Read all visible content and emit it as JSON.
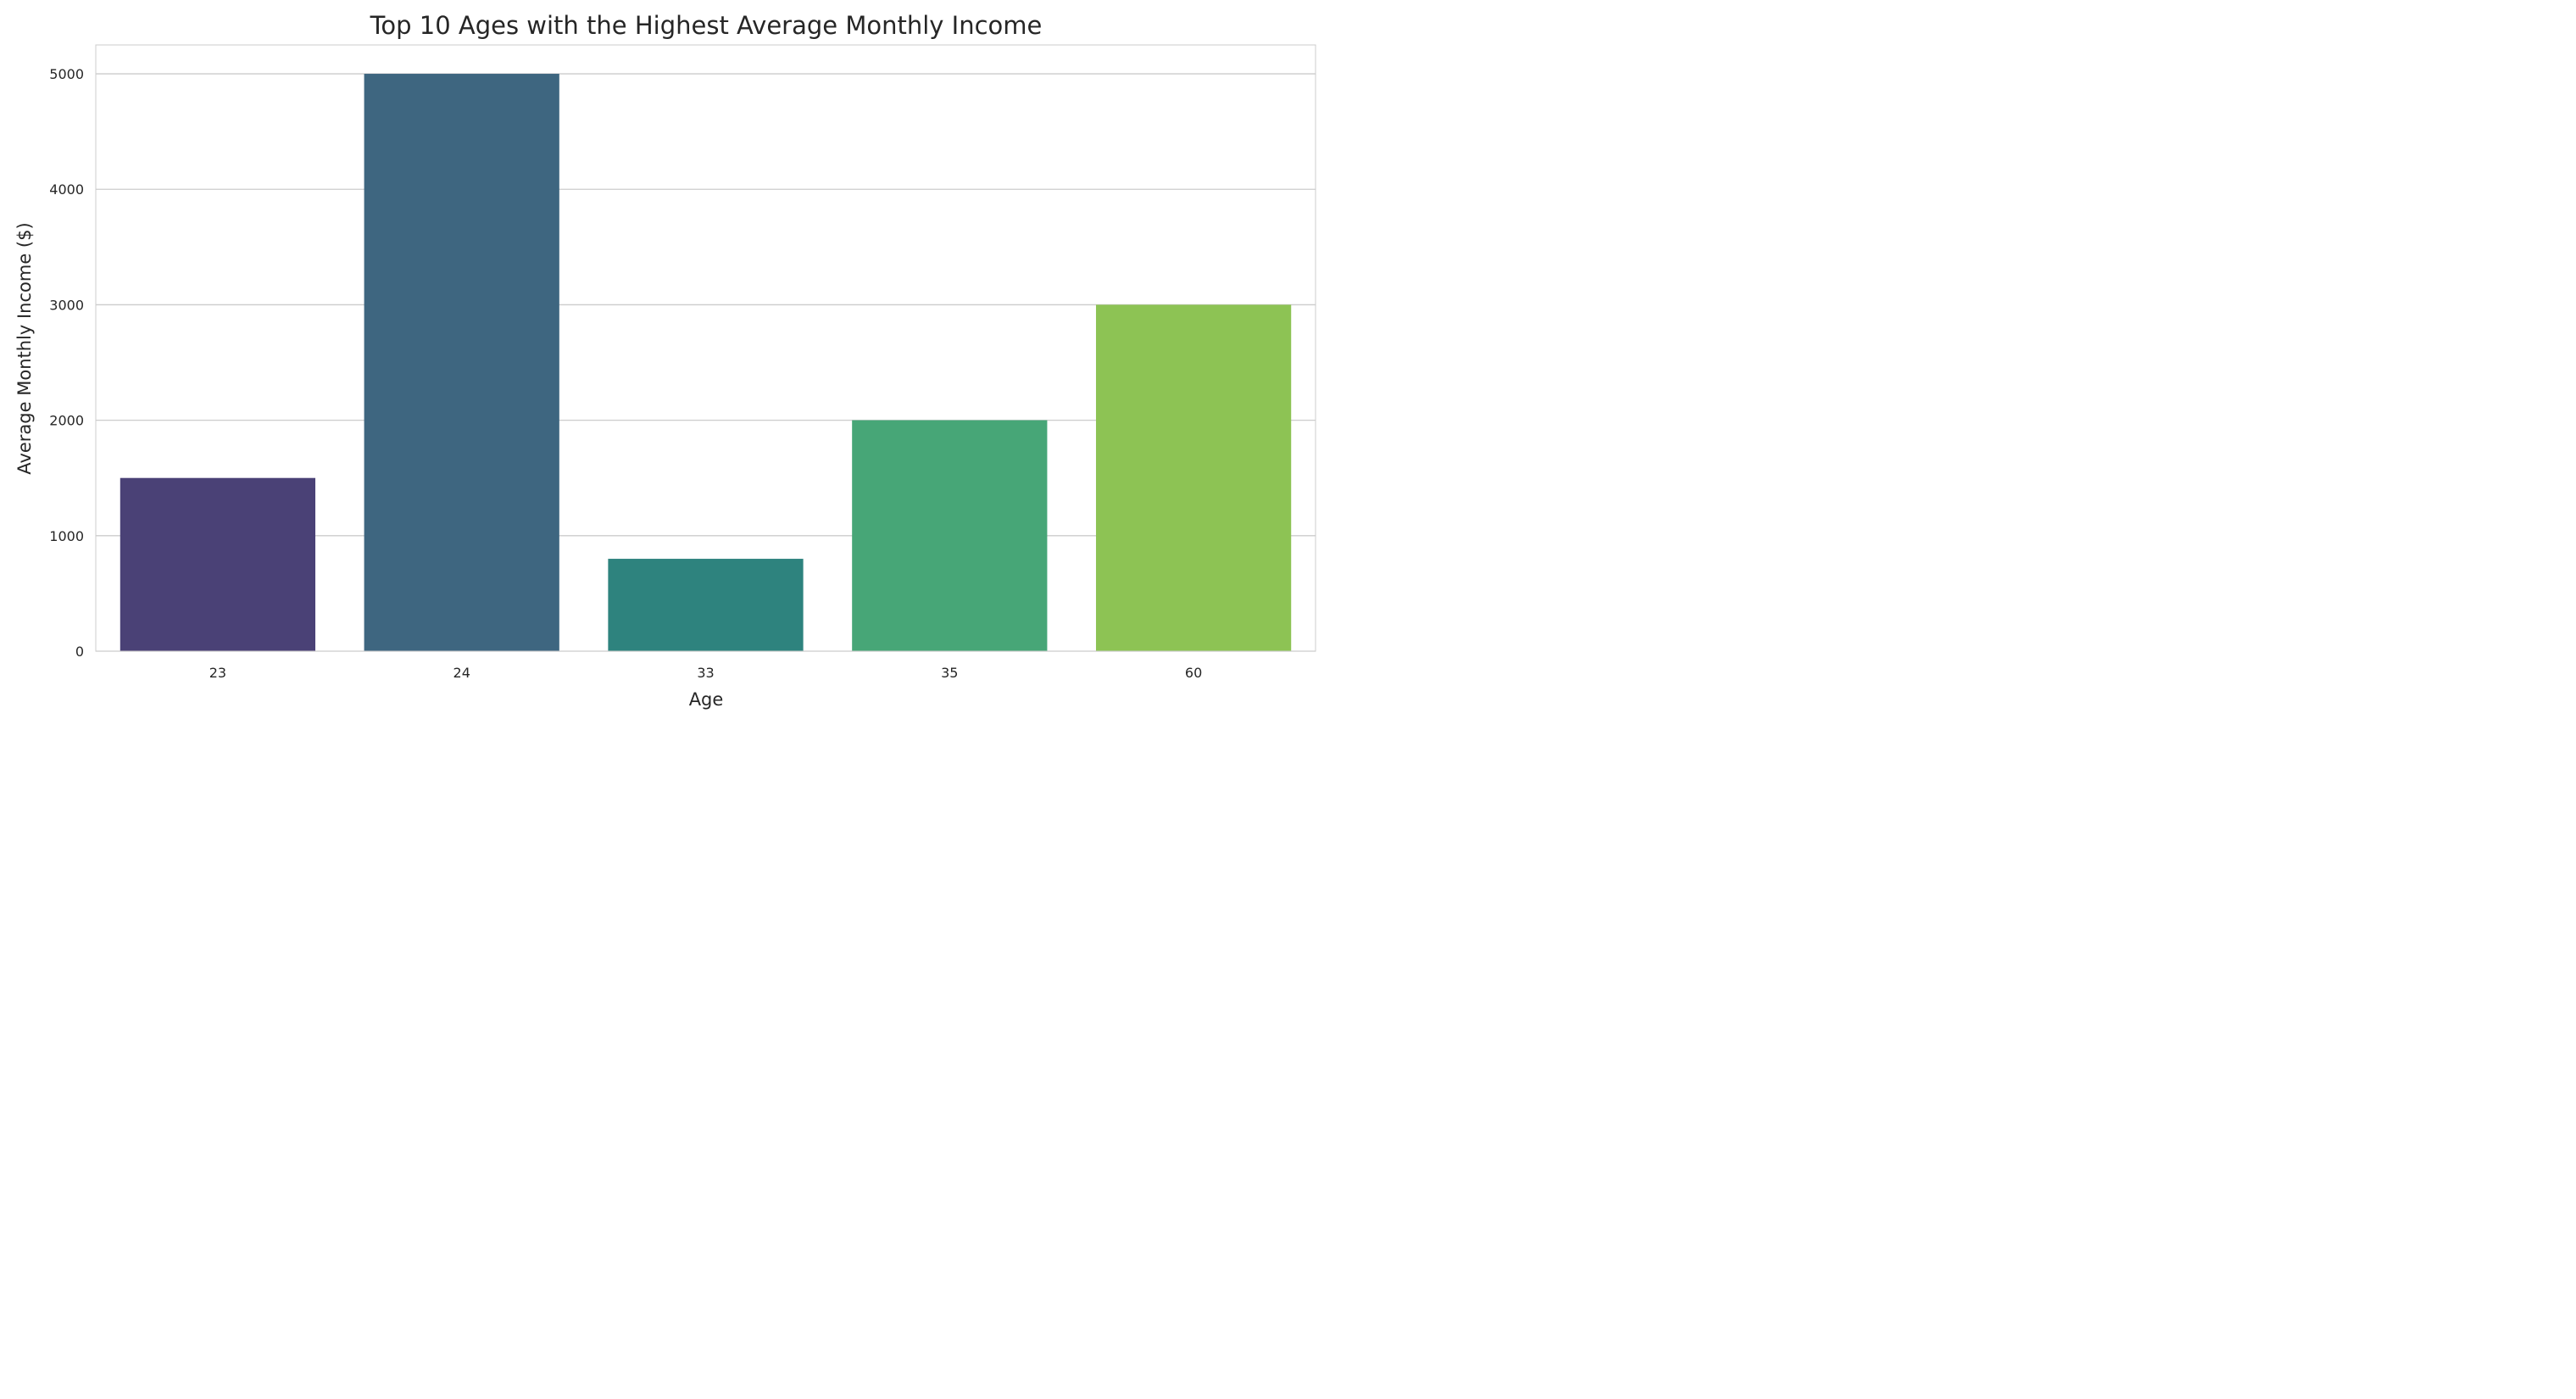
{
  "chart_data": {
    "type": "bar",
    "title": "Top 10 Ages with the Highest Average Monthly Income",
    "xlabel": "Age",
    "ylabel": "Average Monthly Income ($)",
    "categories": [
      "23",
      "24",
      "33",
      "35",
      "60"
    ],
    "values": [
      1500,
      5000,
      800,
      2000,
      3000
    ],
    "colors": [
      "#4a4176",
      "#3e6680",
      "#2e837e",
      "#47a677",
      "#8dc354"
    ],
    "ylim": [
      0,
      5250
    ],
    "yticks": [
      0,
      1000,
      2000,
      3000,
      4000,
      5000
    ],
    "grid": "y-axis",
    "legend": "none"
  }
}
